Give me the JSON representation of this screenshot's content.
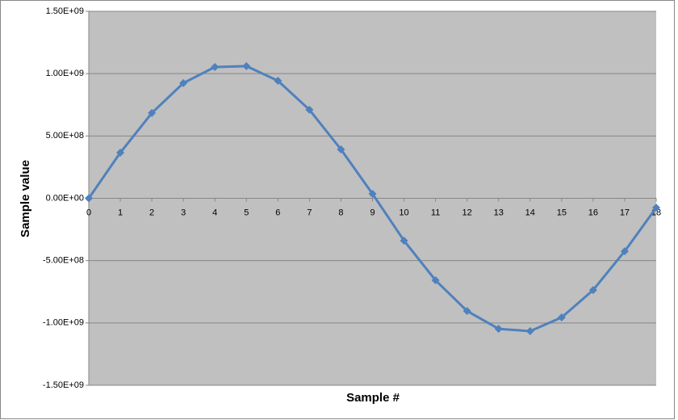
{
  "chart_data": {
    "type": "line",
    "x_label": "Sample #",
    "y_label": "Sample value",
    "x": [
      0,
      1,
      2,
      3,
      4,
      5,
      6,
      7,
      8,
      9,
      10,
      11,
      12,
      13,
      14,
      15,
      16,
      17,
      18
    ],
    "values": [
      0,
      366000000,
      684000000,
      924000000,
      1053000000,
      1060000000,
      943000000,
      710000000,
      392000000,
      36000000,
      -340000000,
      -658000000,
      -904000000,
      -1047000000,
      -1066000000,
      -956000000,
      -736000000,
      -425000000,
      -75000000
    ],
    "color": "#4f81bd",
    "xlim": [
      0,
      18
    ],
    "xticks": [
      0,
      1,
      2,
      3,
      4,
      5,
      6,
      7,
      8,
      9,
      10,
      11,
      12,
      13,
      14,
      15,
      16,
      17,
      18
    ],
    "ylim": [
      -1500000000,
      1500000000
    ],
    "yticks": [
      {
        "value": -1500000000,
        "label": "-1.50E+09"
      },
      {
        "value": -1000000000,
        "label": "-1.00E+09"
      },
      {
        "value": -500000000,
        "label": "-5.00E+08"
      },
      {
        "value": 0,
        "label": "0.00E+00"
      },
      {
        "value": 500000000,
        "label": "5.00E+08"
      },
      {
        "value": 1000000000,
        "label": "1.00E+09"
      },
      {
        "value": 1500000000,
        "label": "1.50E+09"
      }
    ],
    "grid": true
  }
}
